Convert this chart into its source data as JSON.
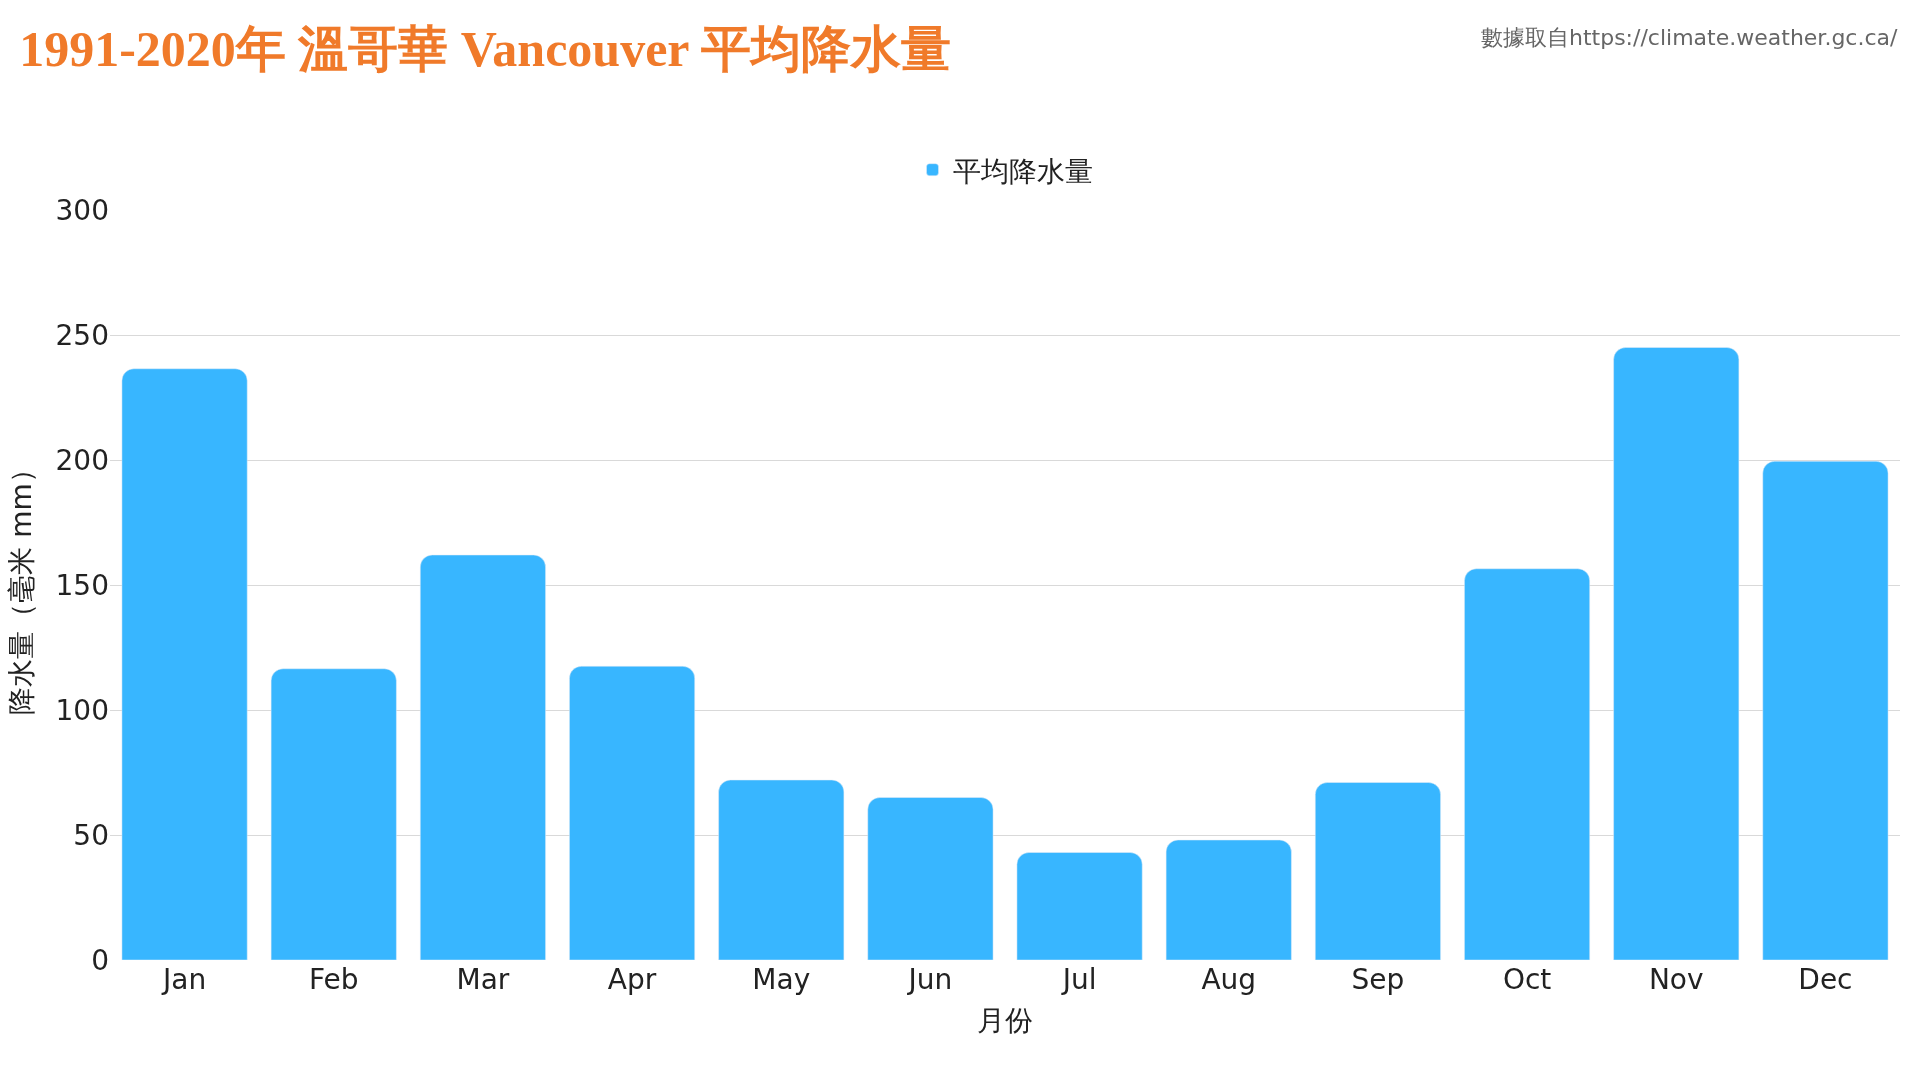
{
  "chart_data": {
    "type": "bar",
    "title": "1991-2020年 溫哥華 Vancouver 平均降水量",
    "categories": [
      "Jan",
      "Feb",
      "Mar",
      "Apr",
      "May",
      "Jun",
      "Jul",
      "Aug",
      "Sep",
      "Oct",
      "Nov",
      "Dec"
    ],
    "series": [
      {
        "name": "平均降水量",
        "color": "#38b6ff",
        "values": [
          236.5,
          116.5,
          162,
          117.5,
          72,
          65,
          43,
          48,
          71,
          156.5,
          245,
          199.5
        ]
      }
    ],
    "xlabel": "月份",
    "ylabel": "降水量（毫米 mm）",
    "ylim": [
      0,
      300
    ],
    "yticks": [
      0,
      50,
      100,
      150,
      200,
      250,
      300
    ],
    "grid": "y",
    "legend": "top",
    "annotations": [
      "數據取自https://climate.weather.gc.ca/"
    ]
  }
}
